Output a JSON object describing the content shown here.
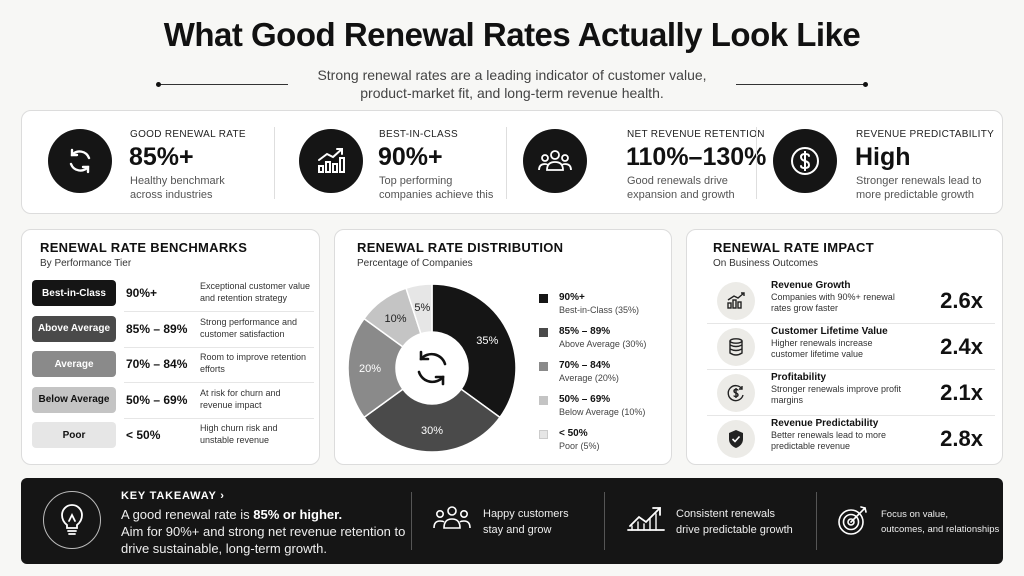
{
  "header": {
    "title": "What Good Renewal Rates Actually Look Like",
    "subtitle_line1": "Strong renewal rates are a leading indicator of customer value,",
    "subtitle_line2": "product-market fit, and long-term revenue health."
  },
  "kpis": [
    {
      "icon": "refresh-icon",
      "label": "GOOD RENEWAL RATE",
      "value": "85%+",
      "note": "Healthy benchmark across industries"
    },
    {
      "icon": "chart-up-icon",
      "label": "BEST-IN-CLASS",
      "value": "90%+",
      "note": "Top performing companies achieve this"
    },
    {
      "icon": "people-icon",
      "label": "NET REVENUE RETENTION",
      "value": "110%–130%",
      "note": "Good renewals drive expansion and growth"
    },
    {
      "icon": "dollar-icon",
      "label": "REVENUE PREDICTABILITY",
      "value": "High",
      "note": "Stronger renewals lead to more predictable growth"
    }
  ],
  "benchmarks": {
    "title": "RENEWAL RATE BENCHMARKS",
    "subtitle": "By Performance Tier",
    "tiers": [
      {
        "name": "Best-in-Class",
        "range": "90%+",
        "desc": "Exceptional customer value and retention strategy",
        "color": "#151515",
        "text_color": "#ffffff"
      },
      {
        "name": "Above Average",
        "range": "85% – 89%",
        "desc": "Strong performance and customer satisfaction",
        "color": "#4a4a4a",
        "text_color": "#ffffff"
      },
      {
        "name": "Average",
        "range": "70% – 84%",
        "desc": "Room to improve retention efforts",
        "color": "#8a8a8a",
        "text_color": "#ffffff"
      },
      {
        "name": "Below Average",
        "range": "50% – 69%",
        "desc": "At risk for churn and revenue impact",
        "color": "#c4c4c4",
        "text_color": "#111111"
      },
      {
        "name": "Poor",
        "range": "< 50%",
        "desc": "High churn risk and unstable revenue",
        "color": "#e6e6e6",
        "text_color": "#111111"
      }
    ]
  },
  "distribution": {
    "title": "RENEWAL RATE DISTRIBUTION",
    "subtitle": "Percentage of Companies",
    "center_icon": "refresh-icon"
  },
  "chart_data": {
    "type": "pie",
    "title": "RENEWAL RATE DISTRIBUTION",
    "subtitle": "Percentage of Companies",
    "donut": true,
    "slices": [
      {
        "range": "90%+",
        "tier": "Best-in-Class (35%)",
        "value": 35,
        "label": "35%",
        "color": "#151515"
      },
      {
        "range": "85% – 89%",
        "tier": "Above Average (30%)",
        "value": 30,
        "label": "30%",
        "color": "#4a4a4a"
      },
      {
        "range": "70% – 84%",
        "tier": "Average (20%)",
        "value": 20,
        "label": "20%",
        "color": "#8a8a8a"
      },
      {
        "range": "50% – 69%",
        "tier": "Below Average (10%)",
        "value": 10,
        "label": "10%",
        "color": "#c4c4c4"
      },
      {
        "range": "< 50%",
        "tier": "Poor (5%)",
        "value": 5,
        "label": "5%",
        "color": "#e6e6e6"
      }
    ],
    "legend_position": "right"
  },
  "impact": {
    "title": "RENEWAL RATE IMPACT",
    "subtitle": "On Business Outcomes",
    "rows": [
      {
        "icon": "growth-chart-icon",
        "title": "Revenue Growth",
        "desc": "Companies with 90%+ renewal rates grow faster",
        "value": "2.6x"
      },
      {
        "icon": "coins-icon",
        "title": "Customer Lifetime Value",
        "desc": "Higher renewals increase customer lifetime value",
        "value": "2.4x"
      },
      {
        "icon": "dollar-cycle-icon",
        "title": "Profitability",
        "desc": "Stronger renewals improve profit margins",
        "value": "2.1x"
      },
      {
        "icon": "shield-check-icon",
        "title": "Revenue Predictability",
        "desc": "Better renewals lead to more predictable revenue",
        "value": "2.8x"
      }
    ]
  },
  "takeaway": {
    "icon": "lightbulb-icon",
    "title": "KEY TAKEAWAY ›",
    "text_prefix": "A good renewal rate is ",
    "text_bold": "85% or higher.",
    "text_rest": "Aim for 90%+ and strong net revenue retention to drive sustainable, long-term growth.",
    "items": [
      {
        "icon": "people-icon",
        "line1": "Happy customers",
        "line2": "stay and grow"
      },
      {
        "icon": "trend-up-icon",
        "line1": "Consistent renewals",
        "line2": "drive predictable growth"
      },
      {
        "icon": "target-icon",
        "line1": "Focus on value,",
        "line2": "outcomes, and relationships"
      }
    ]
  }
}
